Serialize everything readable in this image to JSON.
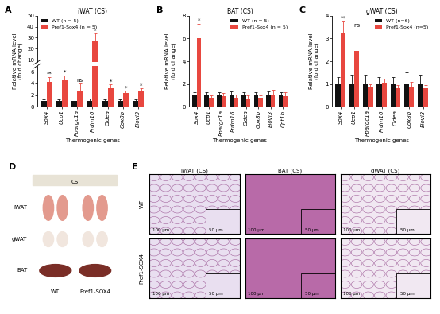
{
  "chart_data": [
    {
      "type": "bar",
      "panel": "A",
      "title": "iWAT (CS)",
      "y_label": "Relative mRNA level\n(fold change)",
      "x_label": "Thermogenic genes",
      "categories": [
        "Sox4",
        "Ucp1",
        "Ppargc1a",
        "Prdm16",
        "Cidea",
        "Cox8b",
        "Elovl3"
      ],
      "ylim": [
        0,
        50
      ],
      "yticks": [
        0,
        2,
        4,
        6,
        10,
        20,
        30,
        40,
        50
      ],
      "y_break": [
        7,
        8
      ],
      "legend": "upper left",
      "series": [
        {
          "name": "WT (n = 5)",
          "color": "#111111",
          "values": [
            1,
            1,
            1,
            1,
            1,
            1,
            1
          ],
          "errors": [
            0.3,
            0.3,
            0.35,
            0.4,
            0.3,
            0.3,
            0.3
          ],
          "annotations": [
            null,
            null,
            null,
            null,
            null,
            null,
            null
          ]
        },
        {
          "name": "Pref1-Sox4 (n = 5)",
          "color": "#e8473f",
          "values": [
            4.3,
            4.5,
            2.8,
            27,
            3.2,
            2.3,
            2.6
          ],
          "errors": [
            0.8,
            0.9,
            1.2,
            7,
            0.6,
            0.4,
            0.5
          ],
          "annotations": [
            "**",
            "*",
            "ns",
            "*",
            "*",
            "*",
            "*"
          ]
        }
      ]
    },
    {
      "type": "bar",
      "panel": "B",
      "title": "BAT (CS)",
      "y_label": "Relative mRNA level\n(fold change)",
      "x_label": "Thermogenic genes",
      "categories": [
        "Sox4",
        "Ucp1",
        "Ppargc1a",
        "Prdm16",
        "Cidea",
        "Cox8b",
        "Elovl3",
        "Cpt1b"
      ],
      "ylim": [
        0,
        8
      ],
      "yticks": [
        0,
        2,
        4,
        6,
        8
      ],
      "legend": "upper right",
      "series": [
        {
          "name": "WT (n = 5)",
          "color": "#111111",
          "values": [
            1,
            1,
            1,
            1,
            1,
            1,
            1,
            1
          ],
          "errors": [
            0.3,
            0.3,
            0.3,
            0.35,
            0.3,
            0.3,
            0.35,
            0.3
          ],
          "annotations": [
            null,
            null,
            null,
            null,
            null,
            null,
            null,
            null
          ]
        },
        {
          "name": "Pref1-Sox4 (n = 5)",
          "color": "#e8473f",
          "values": [
            6.0,
            0.8,
            0.9,
            0.8,
            0.75,
            0.8,
            1.1,
            0.95
          ],
          "errors": [
            1.3,
            0.2,
            0.3,
            0.3,
            0.25,
            0.2,
            0.4,
            0.3
          ],
          "annotations": [
            "*",
            null,
            null,
            null,
            null,
            null,
            null,
            null
          ]
        }
      ]
    },
    {
      "type": "bar",
      "panel": "C",
      "title": "gWAT (CS)",
      "y_label": "Relative mRNA level\n(fold change)",
      "x_label": "Thermogenic genes",
      "categories": [
        "Sox4",
        "Ucp1",
        "Ppargc1a",
        "Prdm16",
        "Cidea",
        "Cox8b",
        "Elovl3"
      ],
      "ylim": [
        0,
        4
      ],
      "yticks": [
        0,
        1,
        2,
        3,
        4
      ],
      "legend": "upper right",
      "series": [
        {
          "name": "WT (n=6)",
          "color": "#111111",
          "values": [
            1,
            1,
            1,
            1,
            1,
            1,
            1
          ],
          "errors": [
            0.3,
            0.4,
            0.4,
            0.3,
            0.3,
            0.5,
            0.4
          ],
          "annotations": [
            null,
            null,
            null,
            null,
            null,
            null,
            null
          ]
        },
        {
          "name": "Pref1-Sox4 (n=5)",
          "color": "#e8473f",
          "values": [
            3.25,
            2.45,
            0.85,
            1.05,
            0.8,
            0.9,
            0.8
          ],
          "errors": [
            0.5,
            1.0,
            0.15,
            0.2,
            0.15,
            0.2,
            0.15
          ],
          "annotations": [
            "**",
            "ns",
            null,
            null,
            null,
            null,
            null
          ]
        }
      ]
    }
  ],
  "photo_panels": [
    {
      "panel": "D",
      "title": "CS",
      "rows": [
        "iWAT",
        "gWAT",
        "BAT"
      ],
      "columns": [
        "WT",
        "Pref1-SOX4"
      ]
    },
    {
      "panel": "E",
      "columns": [
        "iWAT (CS)",
        "BAT (CS)",
        "gWAT (CS)"
      ],
      "rows": [
        "WT",
        "Pref1-SOX4"
      ],
      "scale_bars": [
        "100 μm",
        "50 μm"
      ]
    }
  ]
}
